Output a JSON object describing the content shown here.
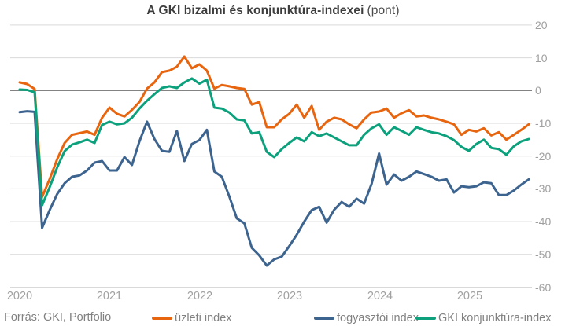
{
  "title": {
    "main": "A GKI bizalmi és konjunktúra-indexei",
    "suffix": "(pont)"
  },
  "footer": {
    "source": "Forrás: GKI, Portfolio"
  },
  "y_axis": {
    "ticks": [
      20,
      10,
      0,
      -10,
      -20,
      -30,
      -40,
      -50,
      -60
    ]
  },
  "x_axis": {
    "years": [
      "2020",
      "2021",
      "2022",
      "2023",
      "2024",
      "2025"
    ]
  },
  "colors": {
    "uzleti": "#e8650f",
    "fogyasztoi": "#3d648f",
    "konjunktura": "#0ca17c",
    "grid": "#d9d9d9",
    "zero_line": "#838383",
    "axis_label": "#a0a0a0",
    "footer_text": "#818181",
    "title_text": "#3d3d3d"
  },
  "chart_data": {
    "type": "line",
    "title": "A GKI bizalmi és konjunktúra-indexei (pont)",
    "frequency": "monthly",
    "x_start": "2020-01",
    "x_end": "2025-09",
    "n_points": 69,
    "x_tick_labels": [
      "2020",
      "2021",
      "2022",
      "2023",
      "2024",
      "2025"
    ],
    "ylim": [
      -60,
      20
    ],
    "y_ticks": [
      20,
      10,
      0,
      -10,
      -20,
      -30,
      -40,
      -50,
      -60
    ],
    "grid": "horizontal",
    "legend_position": "bottom",
    "series": [
      {
        "name": "üzleti index",
        "color": "#e8650f",
        "values": [
          2.5,
          2.0,
          0.5,
          -32.5,
          -27.0,
          -21.0,
          -16.0,
          -13.5,
          -13.0,
          -12.5,
          -13.5,
          -8.3,
          -5.2,
          -7.1,
          -7.9,
          -5.9,
          -3.5,
          0.6,
          2.5,
          5.6,
          6.1,
          7.3,
          10.4,
          6.8,
          8.0,
          6.1,
          0.6,
          1.7,
          1.3,
          0.8,
          0.5,
          -4.3,
          -3.5,
          -11.2,
          -11.2,
          -8.8,
          -7.1,
          -4.3,
          -8.3,
          -4.7,
          -12.0,
          -9.5,
          -8.3,
          -8.8,
          -10.3,
          -11.5,
          -8.8,
          -6.7,
          -6.4,
          -5.5,
          -8.3,
          -6.9,
          -6.0,
          -7.9,
          -7.6,
          -8.3,
          -8.8,
          -9.5,
          -10.3,
          -13.5,
          -12.0,
          -12.5,
          -11.5,
          -13.7,
          -12.7,
          -15.0,
          -13.5,
          -12.0,
          -10.3
        ]
      },
      {
        "name": "fogyasztói index",
        "color": "#3d648f",
        "values": [
          -6.6,
          -6.3,
          -6.5,
          -41.9,
          -36.5,
          -31.6,
          -28.3,
          -26.3,
          -25.9,
          -24.4,
          -22.0,
          -21.5,
          -24.4,
          -24.4,
          -20.3,
          -22.7,
          -15.5,
          -9.5,
          -14.8,
          -18.4,
          -18.7,
          -12.3,
          -21.5,
          -16.3,
          -15.1,
          -12.0,
          -24.7,
          -26.3,
          -32.3,
          -39.0,
          -40.5,
          -48.0,
          -50.3,
          -53.4,
          -51.5,
          -50.7,
          -47.5,
          -44.0,
          -40.0,
          -36.5,
          -35.5,
          -40.3,
          -36.4,
          -34.0,
          -35.5,
          -33.0,
          -34.5,
          -28.5,
          -19.2,
          -28.7,
          -25.6,
          -27.5,
          -26.3,
          -24.7,
          -25.5,
          -26.3,
          -27.5,
          -27.1,
          -31.1,
          -29.2,
          -29.5,
          -29.2,
          -28.0,
          -28.3,
          -31.9,
          -31.9,
          -30.5,
          -28.7,
          -27.1
        ]
      },
      {
        "name": "GKI konjunktúra-index",
        "color": "#0ca17c",
        "values": [
          0.3,
          0.2,
          -0.5,
          -35.0,
          -29.5,
          -23.5,
          -18.5,
          -16.5,
          -15.8,
          -15.0,
          -16.0,
          -10.5,
          -9.5,
          -10.3,
          -10.0,
          -8.3,
          -5.5,
          -3.1,
          -1.1,
          0.8,
          1.3,
          0.8,
          2.5,
          3.7,
          2.1,
          3.3,
          -5.2,
          -5.5,
          -6.7,
          -8.8,
          -9.1,
          -13.1,
          -12.7,
          -18.7,
          -20.3,
          -17.9,
          -16.0,
          -14.3,
          -15.5,
          -12.7,
          -13.9,
          -13.1,
          -14.3,
          -15.5,
          -16.7,
          -16.7,
          -13.5,
          -11.5,
          -10.3,
          -13.5,
          -11.2,
          -12.3,
          -13.5,
          -11.2,
          -12.0,
          -12.7,
          -13.1,
          -13.9,
          -15.1,
          -17.2,
          -18.4,
          -16.3,
          -15.0,
          -17.5,
          -17.9,
          -19.6,
          -17.0,
          -15.5,
          -14.8
        ]
      }
    ]
  }
}
